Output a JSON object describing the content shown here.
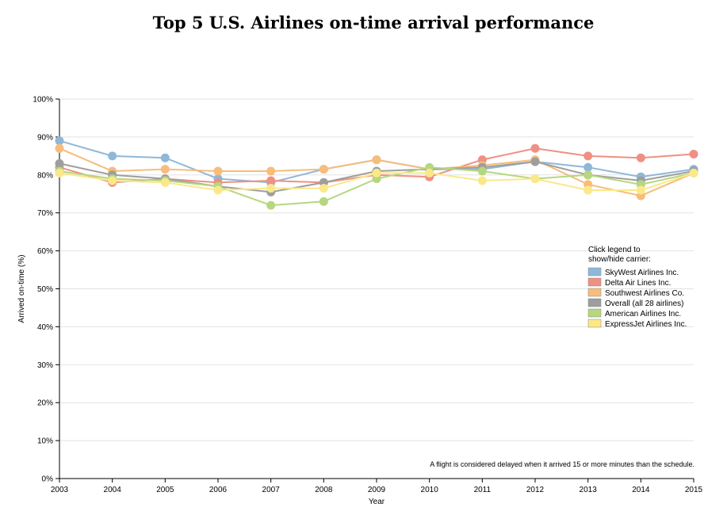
{
  "chart_data": {
    "type": "line",
    "title": "Top 5 U.S. Airlines on-time arrival performance",
    "xlabel": "Year",
    "ylabel": "Arrived on-time (%)",
    "x": [
      "2003",
      "2004",
      "2005",
      "2006",
      "2007",
      "2008",
      "2009",
      "2010",
      "2011",
      "2012",
      "2013",
      "2014",
      "2015"
    ],
    "yticks": [
      "0%",
      "10%",
      "20%",
      "30%",
      "40%",
      "50%",
      "60%",
      "70%",
      "80%",
      "90%",
      "100%"
    ],
    "ylim": [
      0,
      100
    ],
    "grid": true,
    "legend": {
      "title_lines": [
        "Click legend to",
        "show/hide carrier:"
      ],
      "placement": "right"
    },
    "note": "A flight is considered delayed when it arrived 15 or more minutes than the schedule.",
    "series": [
      {
        "name": "SkyWest Airlines Inc.",
        "color": "#8fb8d8",
        "values": [
          89.0,
          85.0,
          84.5,
          79.0,
          78.0,
          81.5,
          84.0,
          81.5,
          81.5,
          83.5,
          82.0,
          79.5,
          81.5
        ]
      },
      {
        "name": "Delta Air Lines Inc.",
        "color": "#ef9084",
        "values": [
          82.0,
          78.0,
          79.0,
          78.0,
          78.5,
          78.0,
          80.0,
          79.5,
          84.0,
          87.0,
          85.0,
          84.5,
          85.5
        ]
      },
      {
        "name": "Southwest Airlines Co.",
        "color": "#f6bd7b",
        "values": [
          87.0,
          81.0,
          81.5,
          81.0,
          81.0,
          81.5,
          84.0,
          81.5,
          82.5,
          84.0,
          77.5,
          74.5,
          80.5
        ]
      },
      {
        "name": "Overall (all 28 airlines)",
        "color": "#9e9e9e",
        "values": [
          83.0,
          80.0,
          79.0,
          77.0,
          75.5,
          78.0,
          81.0,
          81.5,
          82.0,
          83.5,
          80.0,
          78.5,
          81.0
        ]
      },
      {
        "name": "American Airlines Inc.",
        "color": "#b6d77f",
        "values": [
          81.0,
          79.0,
          78.5,
          77.0,
          72.0,
          73.0,
          79.0,
          82.0,
          81.0,
          79.0,
          80.0,
          77.5,
          80.5
        ]
      },
      {
        "name": "ExpressJet Airlines Inc.",
        "color": "#fbe889",
        "values": [
          80.5,
          78.5,
          78.0,
          76.0,
          76.5,
          76.5,
          80.5,
          80.5,
          78.5,
          79.0,
          76.0,
          76.0,
          80.5
        ]
      }
    ]
  }
}
